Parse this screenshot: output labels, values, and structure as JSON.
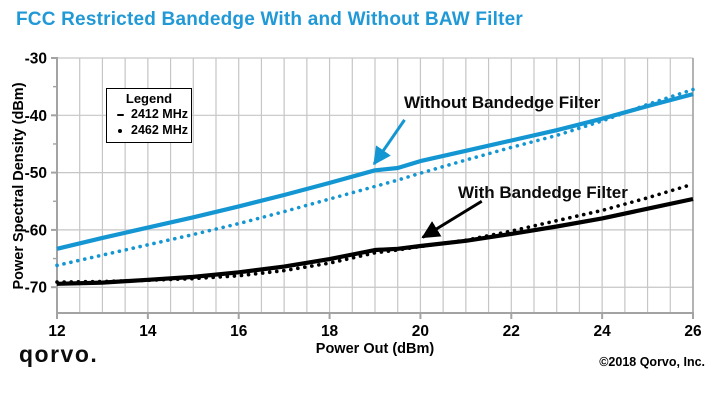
{
  "title": {
    "text": "FCC Restricted Bandedge With and Without BAW Filter",
    "color": "#2199D6"
  },
  "footer": {
    "logo": "qorvo.",
    "copyright": "©2018 Qorvo, Inc."
  },
  "colors": {
    "blue_line": "#1496D2",
    "black_line": "#000000",
    "grid": "#C6C6C6",
    "axis": "#A3A3A3"
  },
  "chart_data": {
    "type": "line",
    "title": "FCC Restricted Bandedge With and Without BAW Filter",
    "xlabel": "Power Out (dBm)",
    "ylabel": "Power Spectral Density (dBm)",
    "xlim": [
      12,
      26
    ],
    "ylim": [
      -74.5,
      -30
    ],
    "x_major_ticks": [
      12,
      14,
      16,
      18,
      20,
      22,
      24,
      26
    ],
    "x_minor_step": 0.5,
    "y_major_ticks": [
      -30,
      -40,
      -50,
      -60,
      -70
    ],
    "y_minor_ticks": [
      -35,
      -45,
      -55,
      -65
    ],
    "grid": true,
    "x": [
      12,
      13,
      14,
      15,
      16,
      17,
      18,
      19,
      19.5,
      20,
      21,
      22,
      23,
      24,
      25,
      26
    ],
    "series": [
      {
        "name": "2412 MHz Without Bandedge Filter",
        "frequency": "2412 MHz",
        "group": "Without Bandedge Filter",
        "style": "solid",
        "color": "#1496D2",
        "values": [
          -63.3,
          -61.4,
          -59.6,
          -57.8,
          -55.9,
          -53.9,
          -51.8,
          -49.6,
          -49.2,
          -48.0,
          -46.2,
          -44.4,
          -42.6,
          -40.6,
          -38.4,
          -36.3
        ]
      },
      {
        "name": "2462 MHz Without Bandedge Filter",
        "frequency": "2462 MHz",
        "group": "Without Bandedge Filter",
        "style": "dotted",
        "color": "#1496D2",
        "values": [
          -66.2,
          -64.4,
          -62.6,
          -60.8,
          -58.9,
          -56.8,
          -54.6,
          -52.4,
          -51.3,
          -50.1,
          -47.8,
          -45.6,
          -43.5,
          -41.0,
          -38.1,
          -35.5
        ]
      },
      {
        "name": "2412 MHz With Bandedge Filter",
        "frequency": "2412 MHz",
        "group": "With Bandedge Filter",
        "style": "solid",
        "color": "#000000",
        "values": [
          -69.4,
          -69.2,
          -68.7,
          -68.2,
          -67.4,
          -66.4,
          -65.1,
          -63.5,
          -63.3,
          -62.8,
          -61.9,
          -60.7,
          -59.4,
          -58.0,
          -56.3,
          -54.6
        ]
      },
      {
        "name": "2462 MHz With Bandedge Filter",
        "frequency": "2462 MHz",
        "group": "With Bandedge Filter",
        "style": "dotted",
        "color": "#000000",
        "values": [
          -69.1,
          -69.0,
          -68.8,
          -68.5,
          -68.0,
          -67.1,
          -65.8,
          -64.0,
          -63.5,
          -62.9,
          -61.8,
          -60.2,
          -58.4,
          -56.6,
          -54.4,
          -52.0
        ]
      }
    ],
    "legend": {
      "title": "Legend",
      "position": "top-left",
      "entries": [
        {
          "marker": "dash",
          "label": "2412 MHz"
        },
        {
          "marker": "dot",
          "label": "2462 MHz"
        }
      ]
    },
    "annotations": [
      {
        "text": "Without Bandedge Filter",
        "color": "#1496D2",
        "arrow": {
          "x1": 19.65,
          "y1": -40.8,
          "x2": 18.98,
          "y2": -48.5
        }
      },
      {
        "text": "With Bandedge Filter",
        "color": "#000000",
        "arrow": {
          "x1": 21.35,
          "y1": -55.0,
          "x2": 20.05,
          "y2": -61.3
        }
      }
    ]
  }
}
